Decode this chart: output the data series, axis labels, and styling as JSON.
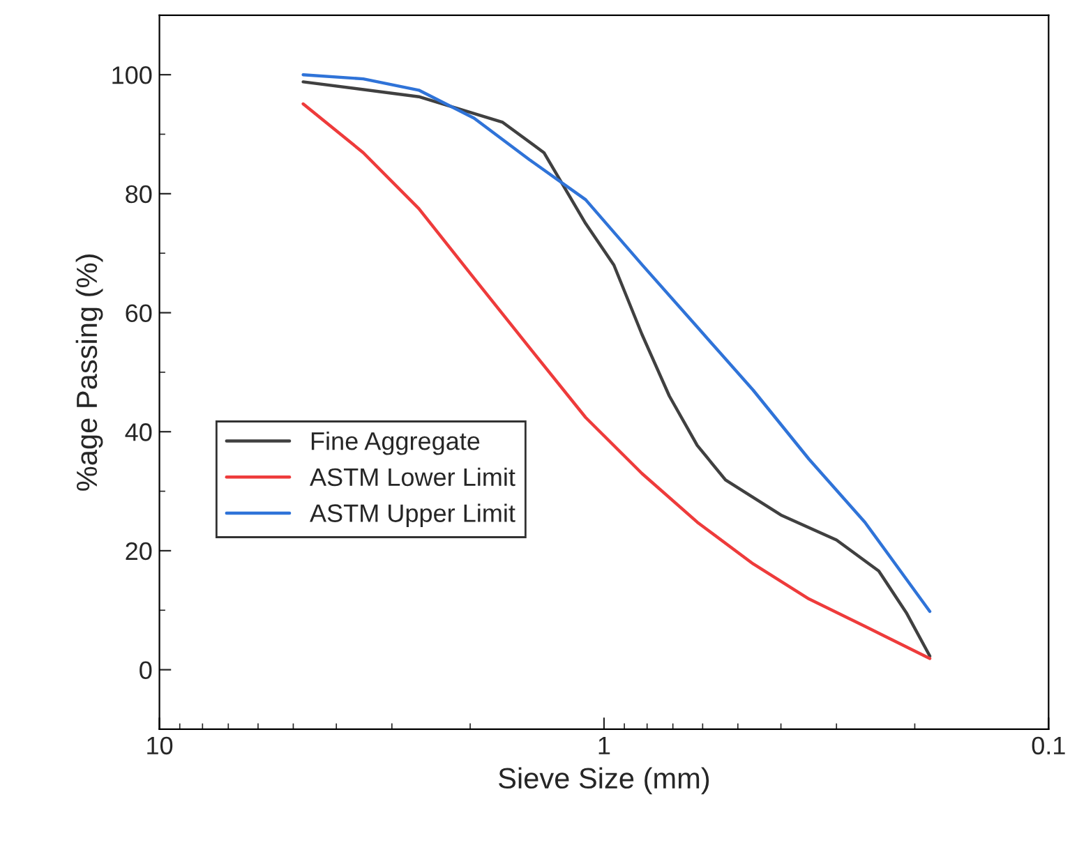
{
  "chart_data": {
    "type": "line",
    "xlabel": "Sieve Size (mm)",
    "ylabel": "%age Passing (%)",
    "log": "x",
    "xlim": [
      10,
      0.1
    ],
    "xticks": [
      10,
      1,
      0.1
    ],
    "ylim": [
      -10,
      110
    ],
    "yticks": [
      0,
      20,
      40,
      60,
      80,
      100
    ],
    "grid": false,
    "legend": "left",
    "marker": "none",
    "line_style": "solid",
    "series": [
      {
        "name": "Fine Aggregate",
        "color": "#404040",
        "x": [
          4.75,
          2.61,
          1.69,
          1.365,
          1.1,
          0.95,
          0.822,
          0.713,
          0.617,
          0.533,
          0.4,
          0.3,
          0.241,
          0.209,
          0.185
        ],
        "values": [
          98.8,
          96.3,
          92,
          86.9,
          75,
          68,
          56.4,
          46,
          37.7,
          31.9,
          26,
          21.8,
          16.6,
          9.6,
          2.3
        ]
      },
      {
        "name": "ASTM Lower Limit",
        "color": "#ee3b3b",
        "x": [
          4.75,
          3.48,
          2.61,
          1.96,
          1.47,
          1.1,
          0.822,
          0.617,
          0.462,
          0.346,
          0.259,
          0.185
        ],
        "values": [
          95.1,
          86.9,
          77.5,
          65.8,
          54.1,
          42.4,
          33,
          24.8,
          17.8,
          11.9,
          7.3,
          1.9
        ]
      },
      {
        "name": "ASTM Upper Limit",
        "color": "#2f73d8",
        "x": [
          4.75,
          3.48,
          2.61,
          1.96,
          1.47,
          1.1,
          0.822,
          0.617,
          0.462,
          0.346,
          0.259,
          0.185
        ],
        "values": [
          100,
          99.3,
          97.4,
          92.7,
          85.7,
          79,
          68.1,
          57.6,
          47,
          35.4,
          24.8,
          9.8
        ]
      }
    ]
  }
}
